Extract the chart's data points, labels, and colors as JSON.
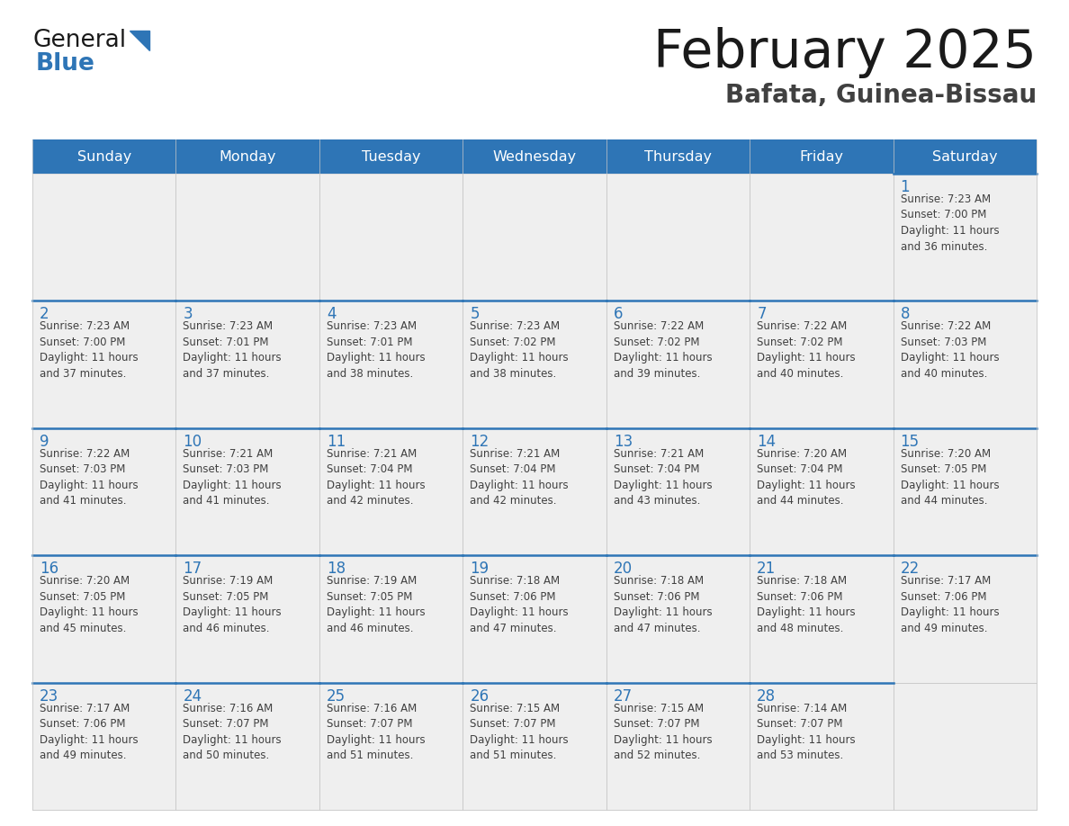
{
  "title": "February 2025",
  "subtitle": "Bafata, Guinea-Bissau",
  "header_bg": "#2E75B6",
  "header_text_color": "#FFFFFF",
  "day_names": [
    "Sunday",
    "Monday",
    "Tuesday",
    "Wednesday",
    "Thursday",
    "Friday",
    "Saturday"
  ],
  "cell_bg": "#EFEFEF",
  "border_color": "#2E75B6",
  "day_number_color": "#2E75B6",
  "text_color": "#404040",
  "title_color": "#1A1A1A",
  "subtitle_color": "#404040",
  "weeks": [
    [
      {
        "day": null,
        "info": null
      },
      {
        "day": null,
        "info": null
      },
      {
        "day": null,
        "info": null
      },
      {
        "day": null,
        "info": null
      },
      {
        "day": null,
        "info": null
      },
      {
        "day": null,
        "info": null
      },
      {
        "day": 1,
        "info": "Sunrise: 7:23 AM\nSunset: 7:00 PM\nDaylight: 11 hours\nand 36 minutes."
      }
    ],
    [
      {
        "day": 2,
        "info": "Sunrise: 7:23 AM\nSunset: 7:00 PM\nDaylight: 11 hours\nand 37 minutes."
      },
      {
        "day": 3,
        "info": "Sunrise: 7:23 AM\nSunset: 7:01 PM\nDaylight: 11 hours\nand 37 minutes."
      },
      {
        "day": 4,
        "info": "Sunrise: 7:23 AM\nSunset: 7:01 PM\nDaylight: 11 hours\nand 38 minutes."
      },
      {
        "day": 5,
        "info": "Sunrise: 7:23 AM\nSunset: 7:02 PM\nDaylight: 11 hours\nand 38 minutes."
      },
      {
        "day": 6,
        "info": "Sunrise: 7:22 AM\nSunset: 7:02 PM\nDaylight: 11 hours\nand 39 minutes."
      },
      {
        "day": 7,
        "info": "Sunrise: 7:22 AM\nSunset: 7:02 PM\nDaylight: 11 hours\nand 40 minutes."
      },
      {
        "day": 8,
        "info": "Sunrise: 7:22 AM\nSunset: 7:03 PM\nDaylight: 11 hours\nand 40 minutes."
      }
    ],
    [
      {
        "day": 9,
        "info": "Sunrise: 7:22 AM\nSunset: 7:03 PM\nDaylight: 11 hours\nand 41 minutes."
      },
      {
        "day": 10,
        "info": "Sunrise: 7:21 AM\nSunset: 7:03 PM\nDaylight: 11 hours\nand 41 minutes."
      },
      {
        "day": 11,
        "info": "Sunrise: 7:21 AM\nSunset: 7:04 PM\nDaylight: 11 hours\nand 42 minutes."
      },
      {
        "day": 12,
        "info": "Sunrise: 7:21 AM\nSunset: 7:04 PM\nDaylight: 11 hours\nand 42 minutes."
      },
      {
        "day": 13,
        "info": "Sunrise: 7:21 AM\nSunset: 7:04 PM\nDaylight: 11 hours\nand 43 minutes."
      },
      {
        "day": 14,
        "info": "Sunrise: 7:20 AM\nSunset: 7:04 PM\nDaylight: 11 hours\nand 44 minutes."
      },
      {
        "day": 15,
        "info": "Sunrise: 7:20 AM\nSunset: 7:05 PM\nDaylight: 11 hours\nand 44 minutes."
      }
    ],
    [
      {
        "day": 16,
        "info": "Sunrise: 7:20 AM\nSunset: 7:05 PM\nDaylight: 11 hours\nand 45 minutes."
      },
      {
        "day": 17,
        "info": "Sunrise: 7:19 AM\nSunset: 7:05 PM\nDaylight: 11 hours\nand 46 minutes."
      },
      {
        "day": 18,
        "info": "Sunrise: 7:19 AM\nSunset: 7:05 PM\nDaylight: 11 hours\nand 46 minutes."
      },
      {
        "day": 19,
        "info": "Sunrise: 7:18 AM\nSunset: 7:06 PM\nDaylight: 11 hours\nand 47 minutes."
      },
      {
        "day": 20,
        "info": "Sunrise: 7:18 AM\nSunset: 7:06 PM\nDaylight: 11 hours\nand 47 minutes."
      },
      {
        "day": 21,
        "info": "Sunrise: 7:18 AM\nSunset: 7:06 PM\nDaylight: 11 hours\nand 48 minutes."
      },
      {
        "day": 22,
        "info": "Sunrise: 7:17 AM\nSunset: 7:06 PM\nDaylight: 11 hours\nand 49 minutes."
      }
    ],
    [
      {
        "day": 23,
        "info": "Sunrise: 7:17 AM\nSunset: 7:06 PM\nDaylight: 11 hours\nand 49 minutes."
      },
      {
        "day": 24,
        "info": "Sunrise: 7:16 AM\nSunset: 7:07 PM\nDaylight: 11 hours\nand 50 minutes."
      },
      {
        "day": 25,
        "info": "Sunrise: 7:16 AM\nSunset: 7:07 PM\nDaylight: 11 hours\nand 51 minutes."
      },
      {
        "day": 26,
        "info": "Sunrise: 7:15 AM\nSunset: 7:07 PM\nDaylight: 11 hours\nand 51 minutes."
      },
      {
        "day": 27,
        "info": "Sunrise: 7:15 AM\nSunset: 7:07 PM\nDaylight: 11 hours\nand 52 minutes."
      },
      {
        "day": 28,
        "info": "Sunrise: 7:14 AM\nSunset: 7:07 PM\nDaylight: 11 hours\nand 53 minutes."
      },
      {
        "day": null,
        "info": null
      }
    ]
  ],
  "fig_width": 11.88,
  "fig_height": 9.18,
  "dpi": 100
}
